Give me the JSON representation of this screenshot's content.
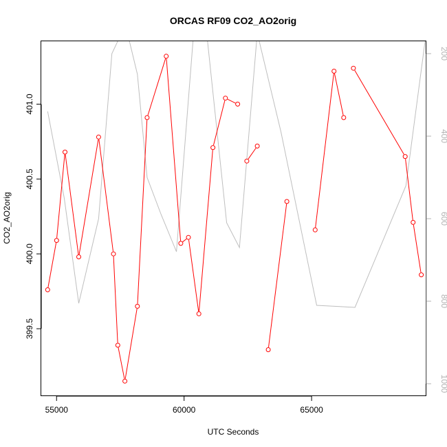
{
  "chart_data": {
    "type": "line",
    "title": "ORCAS RF09 CO2_AO2orig",
    "xlabel": "UTC Seconds",
    "ylabel": "CO2_AO2orig",
    "xlim": [
      54400,
      69500
    ],
    "ylim": [
      399.05,
      401.42
    ],
    "x_ticks": [
      55000,
      60000,
      65000
    ],
    "y_ticks": [
      399.5,
      400.0,
      400.5,
      401.0
    ],
    "y2lim": [
      1030,
      170
    ],
    "y2_ticks": [
      200,
      400,
      600,
      800,
      1000
    ],
    "grid": false,
    "series": [
      {
        "color": "#ff0000",
        "markers": "open-circle",
        "x": [
          54650,
          55000,
          55330,
          55870,
          56650,
          57230,
          57400,
          57680,
          58170,
          58550,
          59300,
          59870,
          60170,
          60580,
          61130,
          61620,
          62100,
          62460,
          62870,
          63300,
          64030,
          65140,
          65880,
          66260,
          66640,
          68670,
          68980,
          69300
        ],
        "y": [
          399.76,
          400.09,
          400.68,
          399.98,
          400.78,
          400.0,
          399.39,
          399.15,
          399.65,
          400.91,
          401.32,
          400.07,
          400.11,
          399.6,
          400.71,
          401.04,
          401.0,
          400.62,
          400.72,
          399.36,
          400.35,
          400.16,
          401.22,
          400.91,
          401.24,
          400.65,
          400.21,
          399.86
        ],
        "segments": [
          [
            0,
            16
          ],
          [
            17,
            18
          ],
          [
            19,
            20
          ],
          [
            21,
            23
          ],
          [
            24,
            27
          ]
        ]
      },
      {
        "color": "#bebebe",
        "axis": "right",
        "x": [
          54650,
          55300,
          55870,
          56650,
          57170,
          57700,
          58170,
          58550,
          59100,
          59700,
          60400,
          60870,
          61670,
          62170,
          62870,
          63800,
          65200,
          66100,
          66700,
          68700,
          69450
        ],
        "y2": [
          340,
          550,
          805,
          600,
          200,
          130,
          250,
          500,
          590,
          680,
          130,
          140,
          610,
          670,
          150,
          390,
          810,
          813,
          815,
          520,
          170
        ]
      }
    ]
  }
}
